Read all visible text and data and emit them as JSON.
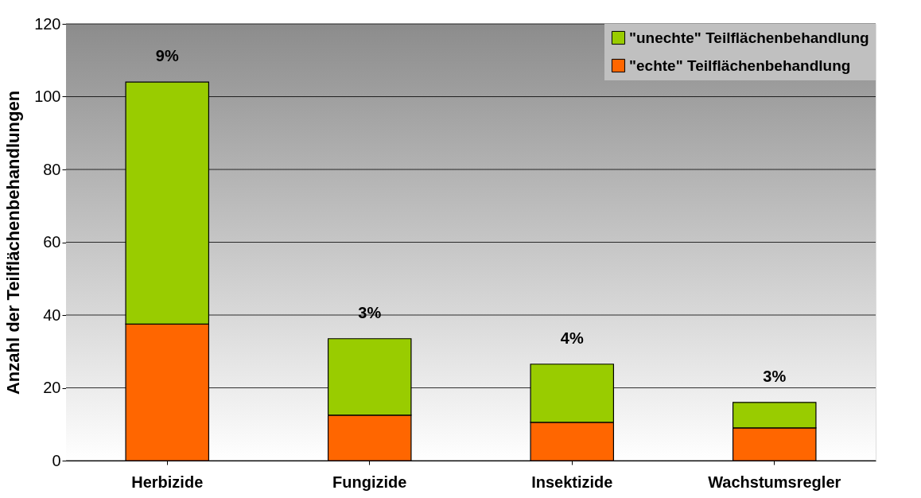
{
  "chart_data": {
    "type": "bar",
    "stacked": true,
    "ylabel": "Anzahl der Teilflächenbehandlungen",
    "categories": [
      "Herbizide",
      "Fungizide",
      "Insektizide",
      "Wachstumsregler"
    ],
    "series": [
      {
        "name": "\"echte\" Teilflächenbehandlung",
        "color": "#ff6600",
        "values": [
          37.5,
          12.5,
          10.5,
          9
        ]
      },
      {
        "name": "\"unechte\" Teilflächenbehandlung",
        "color": "#99cc00",
        "values": [
          66.5,
          21,
          16,
          7
        ]
      }
    ],
    "ylim": [
      0,
      120
    ],
    "yticks": [
      0,
      20,
      40,
      60,
      80,
      100,
      120
    ],
    "grid": "y",
    "legend": "top right",
    "annotations": [
      "9%",
      "3%",
      "4%",
      "3%"
    ]
  }
}
